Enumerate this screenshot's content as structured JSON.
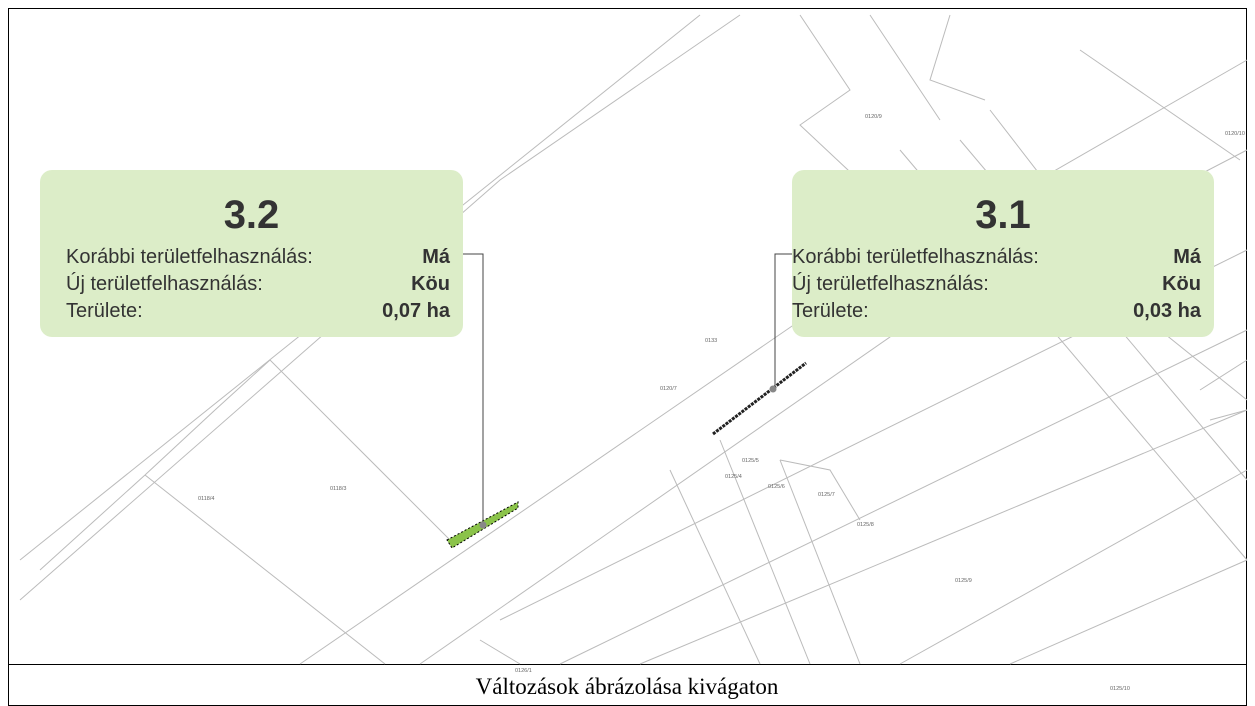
{
  "callouts": [
    {
      "title": "3.2",
      "rows": [
        {
          "label": "Korábbi területfelhasználás:",
          "value": "Má"
        },
        {
          "label": "Új területfelhasználás:",
          "value": "Köu"
        },
        {
          "label": "Területe:",
          "value": "0,07 ha"
        }
      ]
    },
    {
      "title": "3.1",
      "rows": [
        {
          "label": "Korábbi területfelhasználás:",
          "value": "Má"
        },
        {
          "label": "Új területfelhasználás:",
          "value": "Köu"
        },
        {
          "label": "Területe:",
          "value": "0,03 ha"
        }
      ]
    }
  ],
  "parcel_labels": [
    "0120/7",
    "0133",
    "0125/5",
    "0125/4",
    "0125/6",
    "0125/7",
    "0125/8",
    "0125/9",
    "0118/4",
    "0118/3",
    "0120/9",
    "0125/10",
    "0120/10",
    "0126/1"
  ],
  "caption": "Változások ábrázolása kivágaton"
}
